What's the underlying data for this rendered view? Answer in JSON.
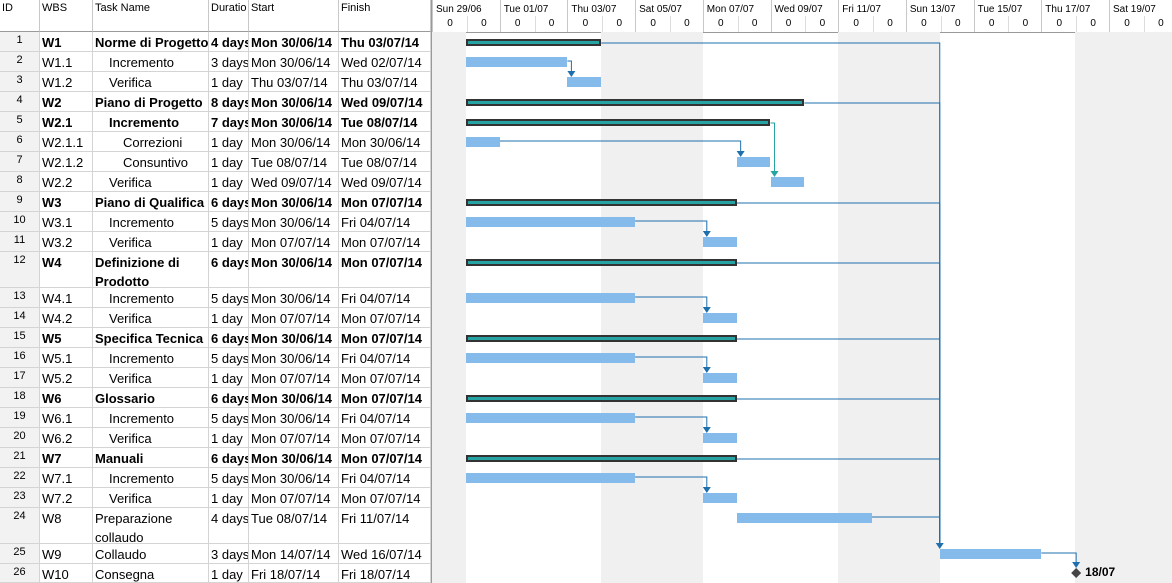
{
  "columns": {
    "id": "ID",
    "wbs": "WBS",
    "task": "Task Name",
    "duration": "Duratio",
    "start": "Start",
    "finish": "Finish"
  },
  "timescale": {
    "weeks": [
      "Sun 29/06",
      "Tue 01/07",
      "Thu 03/07",
      "Sat 05/07",
      "Mon 07/07",
      "Wed 09/07",
      "Fri 11/07",
      "Sun 13/07",
      "Tue 15/07",
      "Thu 17/07",
      "Sat 19/07"
    ],
    "sub_label": "0"
  },
  "tasks": [
    {
      "id": "1",
      "wbs": "W1",
      "name": "Norme di Progetto",
      "duration": "4 days",
      "start": "Mon 30/06/14",
      "finish": "Thu 03/07/14",
      "summary": true,
      "indent": 0
    },
    {
      "id": "2",
      "wbs": "W1.1",
      "name": "Incremento",
      "duration": "3 days",
      "start": "Mon 30/06/14",
      "finish": "Wed 02/07/14",
      "summary": false,
      "indent": 1
    },
    {
      "id": "3",
      "wbs": "W1.2",
      "name": "Verifica",
      "duration": "1 day",
      "start": "Thu 03/07/14",
      "finish": "Thu 03/07/14",
      "summary": false,
      "indent": 1
    },
    {
      "id": "4",
      "wbs": "W2",
      "name": "Piano di Progetto",
      "duration": "8 days",
      "start": "Mon 30/06/14",
      "finish": "Wed 09/07/14",
      "summary": true,
      "indent": 0
    },
    {
      "id": "5",
      "wbs": "W2.1",
      "name": "Incremento",
      "duration": "7 days",
      "start": "Mon 30/06/14",
      "finish": "Tue 08/07/14",
      "summary": true,
      "indent": 1
    },
    {
      "id": "6",
      "wbs": "W2.1.1",
      "name": "Correzioni",
      "duration": "1 day",
      "start": "Mon 30/06/14",
      "finish": "Mon 30/06/14",
      "summary": false,
      "indent": 2
    },
    {
      "id": "7",
      "wbs": "W2.1.2",
      "name": "Consuntivo",
      "duration": "1 day",
      "start": "Tue 08/07/14",
      "finish": "Tue 08/07/14",
      "summary": false,
      "indent": 2
    },
    {
      "id": "8",
      "wbs": "W2.2",
      "name": "Verifica",
      "duration": "1 day",
      "start": "Wed 09/07/14",
      "finish": "Wed 09/07/14",
      "summary": false,
      "indent": 1
    },
    {
      "id": "9",
      "wbs": "W3",
      "name": "Piano di Qualifica",
      "duration": "6 days",
      "start": "Mon 30/06/14",
      "finish": "Mon 07/07/14",
      "summary": true,
      "indent": 0
    },
    {
      "id": "10",
      "wbs": "W3.1",
      "name": "Incremento",
      "duration": "5 days",
      "start": "Mon 30/06/14",
      "finish": "Fri 04/07/14",
      "summary": false,
      "indent": 1
    },
    {
      "id": "11",
      "wbs": "W3.2",
      "name": "Verifica",
      "duration": "1 day",
      "start": "Mon 07/07/14",
      "finish": "Mon 07/07/14",
      "summary": false,
      "indent": 1
    },
    {
      "id": "12",
      "wbs": "W4",
      "name": "Definizione di Prodotto",
      "duration": "6 days",
      "start": "Mon 30/06/14",
      "finish": "Mon 07/07/14",
      "summary": true,
      "indent": 0
    },
    {
      "id": "13",
      "wbs": "W4.1",
      "name": "Incremento",
      "duration": "5 days",
      "start": "Mon 30/06/14",
      "finish": "Fri 04/07/14",
      "summary": false,
      "indent": 1
    },
    {
      "id": "14",
      "wbs": "W4.2",
      "name": "Verifica",
      "duration": "1 day",
      "start": "Mon 07/07/14",
      "finish": "Mon 07/07/14",
      "summary": false,
      "indent": 1
    },
    {
      "id": "15",
      "wbs": "W5",
      "name": "Specifica Tecnica",
      "duration": "6 days",
      "start": "Mon 30/06/14",
      "finish": "Mon 07/07/14",
      "summary": true,
      "indent": 0
    },
    {
      "id": "16",
      "wbs": "W5.1",
      "name": "Incremento",
      "duration": "5 days",
      "start": "Mon 30/06/14",
      "finish": "Fri 04/07/14",
      "summary": false,
      "indent": 1
    },
    {
      "id": "17",
      "wbs": "W5.2",
      "name": "Verifica",
      "duration": "1 day",
      "start": "Mon 07/07/14",
      "finish": "Mon 07/07/14",
      "summary": false,
      "indent": 1
    },
    {
      "id": "18",
      "wbs": "W6",
      "name": "Glossario",
      "duration": "6 days",
      "start": "Mon 30/06/14",
      "finish": "Mon 07/07/14",
      "summary": true,
      "indent": 0
    },
    {
      "id": "19",
      "wbs": "W6.1",
      "name": "Incremento",
      "duration": "5 days",
      "start": "Mon 30/06/14",
      "finish": "Fri 04/07/14",
      "summary": false,
      "indent": 1
    },
    {
      "id": "20",
      "wbs": "W6.2",
      "name": "Verifica",
      "duration": "1 day",
      "start": "Mon 07/07/14",
      "finish": "Mon 07/07/14",
      "summary": false,
      "indent": 1
    },
    {
      "id": "21",
      "wbs": "W7",
      "name": "Manuali",
      "duration": "6 days",
      "start": "Mon 30/06/14",
      "finish": "Mon 07/07/14",
      "summary": true,
      "indent": 0
    },
    {
      "id": "22",
      "wbs": "W7.1",
      "name": "Incremento",
      "duration": "5 days",
      "start": "Mon 30/06/14",
      "finish": "Fri 04/07/14",
      "summary": false,
      "indent": 1
    },
    {
      "id": "23",
      "wbs": "W7.2",
      "name": "Verifica",
      "duration": "1 day",
      "start": "Mon 07/07/14",
      "finish": "Mon 07/07/14",
      "summary": false,
      "indent": 1
    },
    {
      "id": "24",
      "wbs": "W8",
      "name": "Preparazione collaudo",
      "duration": "4 days",
      "start": "Tue 08/07/14",
      "finish": "Fri 11/07/14",
      "summary": false,
      "indent": 0
    },
    {
      "id": "25",
      "wbs": "W9",
      "name": "Collaudo",
      "duration": "3 days",
      "start": "Mon 14/07/14",
      "finish": "Wed 16/07/14",
      "summary": false,
      "indent": 0
    },
    {
      "id": "26",
      "wbs": "W10",
      "name": "Consegna",
      "duration": "1 day",
      "start": "Fri 18/07/14",
      "finish": "Fri 18/07/14",
      "summary": false,
      "indent": 0,
      "milestone": true
    }
  ],
  "milestone_label": "18/07",
  "colors": {
    "summary": "#26a4a4",
    "task": "#85bbeb",
    "link": "#1f6fad",
    "weekend": "#f0f0f0"
  }
}
